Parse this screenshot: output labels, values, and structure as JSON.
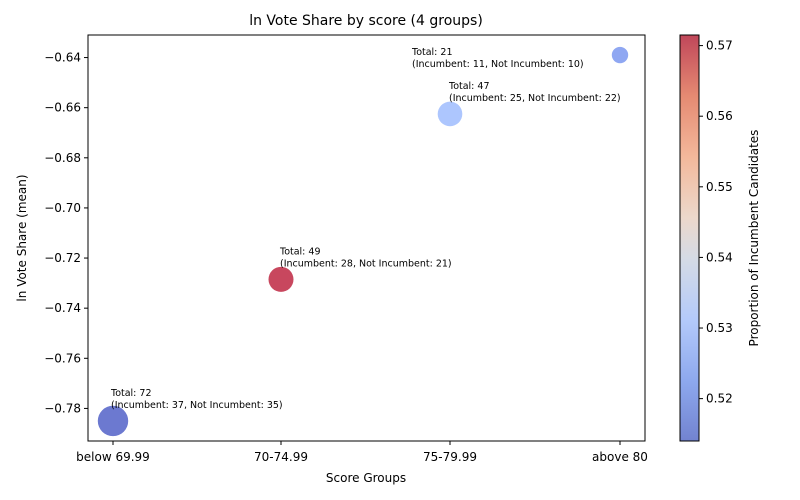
{
  "chart_data": {
    "type": "scatter",
    "title": "ln Vote Share by score (4 groups)",
    "xlabel": "Score Groups",
    "ylabel": "ln Vote Share (mean)",
    "categories": [
      "below 69.99",
      "70-74.99",
      "75-79.99",
      "above 80"
    ],
    "values": [
      -0.785,
      -0.7285,
      -0.6625,
      -0.639
    ],
    "totals": [
      72,
      49,
      47,
      21
    ],
    "incumbent_proportion": [
      0.514,
      0.571,
      0.532,
      0.524
    ],
    "annotations": [
      {
        "line1": "Total: 72",
        "line2": "(Incumbent: 37, Not Incumbent: 35)"
      },
      {
        "line1": "Total: 49",
        "line2": "(Incumbent: 28, Not Incumbent: 21)"
      },
      {
        "line1": "Total: 47",
        "line2": "(Incumbent: 25, Not Incumbent: 22)"
      },
      {
        "line1": "Total: 21",
        "line2": "(Incumbent: 11, Not Incumbent: 10)"
      }
    ],
    "ylim": [
      -0.793,
      -0.631
    ],
    "yticks": [
      -0.78,
      -0.76,
      -0.74,
      -0.72,
      -0.7,
      -0.68,
      -0.66,
      -0.64
    ],
    "ytick_labels": [
      "−0.78",
      "−0.76",
      "−0.74",
      "−0.72",
      "−0.70",
      "−0.68",
      "−0.66",
      "−0.64"
    ],
    "colorbar": {
      "label": "Proportion of Incumbent Candidates",
      "range": [
        0.514,
        0.5715
      ],
      "ticks": [
        0.52,
        0.53,
        0.54,
        0.55,
        0.56,
        0.57
      ],
      "tick_labels": [
        "0.52",
        "0.53",
        "0.54",
        "0.55",
        "0.56",
        "0.57"
      ],
      "colormap": "coolwarm"
    },
    "grid": false
  }
}
